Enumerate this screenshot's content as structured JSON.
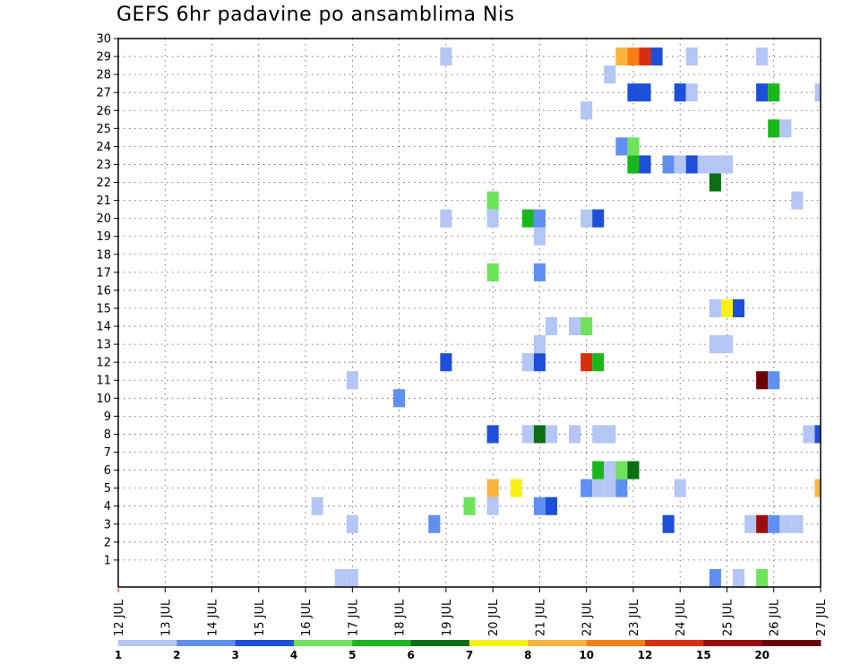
{
  "chart_data": {
    "type": "heatmap",
    "title": "GEFS 6hr padavine po ansamblima Nis",
    "xlabel": "",
    "ylabel": "",
    "x_unit": "6-hour step",
    "xlim": [
      0,
      60
    ],
    "ylim": [
      0,
      30
    ],
    "x_tick_labels": [
      "12 JUL",
      "13 JUL",
      "14 JUL",
      "15 JUL",
      "16 JUL",
      "17 JUL",
      "18 JUL",
      "19 JUL",
      "20 JUL",
      "21 JUL",
      "22 JUL",
      "23 JUL",
      "24 JUL",
      "25 JUL",
      "26 JUL",
      "27 JUL"
    ],
    "y_tick_labels": [
      "1",
      "2",
      "3",
      "4",
      "5",
      "6",
      "7",
      "8",
      "9",
      "10",
      "11",
      "12",
      "13",
      "14",
      "15",
      "16",
      "17",
      "18",
      "19",
      "20",
      "21",
      "22",
      "23",
      "24",
      "25",
      "26",
      "27",
      "28",
      "29",
      "30"
    ],
    "grid": true,
    "legend_labels": [
      "1",
      "2",
      "3",
      "4",
      "5",
      "6",
      "7",
      "8",
      "10",
      "12",
      "15",
      "20"
    ],
    "palette": [
      "#b3c6f4",
      "#5f8ff0",
      "#1e4fd8",
      "#6de25a",
      "#19b71b",
      "#0b6e13",
      "#f7f214",
      "#f9b43f",
      "#f77f15",
      "#d92f0e",
      "#9c0e0e",
      "#6b0000"
    ],
    "cells": [
      {
        "x": 19,
        "y": 0,
        "c": 0
      },
      {
        "x": 20,
        "y": 0,
        "c": 0
      },
      {
        "x": 51,
        "y": 0,
        "c": 1
      },
      {
        "x": 53,
        "y": 0,
        "c": 0
      },
      {
        "x": 55,
        "y": 0,
        "c": 3
      },
      {
        "x": 20,
        "y": 3,
        "c": 0
      },
      {
        "x": 27,
        "y": 3,
        "c": 1
      },
      {
        "x": 47,
        "y": 3,
        "c": 2
      },
      {
        "x": 54,
        "y": 3,
        "c": 0
      },
      {
        "x": 55,
        "y": 3,
        "c": 10
      },
      {
        "x": 56,
        "y": 3,
        "c": 1
      },
      {
        "x": 57,
        "y": 3,
        "c": 0
      },
      {
        "x": 58,
        "y": 3,
        "c": 0
      },
      {
        "x": 17,
        "y": 4,
        "c": 0
      },
      {
        "x": 30,
        "y": 4,
        "c": 3
      },
      {
        "x": 32,
        "y": 4,
        "c": 0
      },
      {
        "x": 36,
        "y": 4,
        "c": 1
      },
      {
        "x": 37,
        "y": 4,
        "c": 2
      },
      {
        "x": 32,
        "y": 5,
        "c": 7
      },
      {
        "x": 34,
        "y": 5,
        "c": 6
      },
      {
        "x": 40,
        "y": 5,
        "c": 1
      },
      {
        "x": 41,
        "y": 5,
        "c": 0
      },
      {
        "x": 42,
        "y": 5,
        "c": 0
      },
      {
        "x": 43,
        "y": 5,
        "c": 1
      },
      {
        "x": 48,
        "y": 5,
        "c": 0
      },
      {
        "x": 60,
        "y": 5,
        "c": 7
      },
      {
        "x": 41,
        "y": 6,
        "c": 4
      },
      {
        "x": 42,
        "y": 6,
        "c": 0
      },
      {
        "x": 43,
        "y": 6,
        "c": 3
      },
      {
        "x": 44,
        "y": 6,
        "c": 5
      },
      {
        "x": 32,
        "y": 8,
        "c": 2
      },
      {
        "x": 35,
        "y": 8,
        "c": 0
      },
      {
        "x": 36,
        "y": 8,
        "c": 5
      },
      {
        "x": 37,
        "y": 8,
        "c": 0
      },
      {
        "x": 39,
        "y": 8,
        "c": 0
      },
      {
        "x": 41,
        "y": 8,
        "c": 0
      },
      {
        "x": 42,
        "y": 8,
        "c": 0
      },
      {
        "x": 59,
        "y": 8,
        "c": 0
      },
      {
        "x": 60,
        "y": 8,
        "c": 2
      },
      {
        "x": 24,
        "y": 10,
        "c": 1
      },
      {
        "x": 20,
        "y": 11,
        "c": 0
      },
      {
        "x": 55,
        "y": 11,
        "c": 11
      },
      {
        "x": 56,
        "y": 11,
        "c": 1
      },
      {
        "x": 28,
        "y": 12,
        "c": 2
      },
      {
        "x": 35,
        "y": 12,
        "c": 0
      },
      {
        "x": 36,
        "y": 12,
        "c": 2
      },
      {
        "x": 40,
        "y": 12,
        "c": 9
      },
      {
        "x": 41,
        "y": 12,
        "c": 4
      },
      {
        "x": 36,
        "y": 13,
        "c": 0
      },
      {
        "x": 51,
        "y": 13,
        "c": 0
      },
      {
        "x": 52,
        "y": 13,
        "c": 0
      },
      {
        "x": 37,
        "y": 14,
        "c": 0
      },
      {
        "x": 39,
        "y": 14,
        "c": 0
      },
      {
        "x": 40,
        "y": 14,
        "c": 3
      },
      {
        "x": 51,
        "y": 15,
        "c": 0
      },
      {
        "x": 52,
        "y": 15,
        "c": 6
      },
      {
        "x": 53,
        "y": 15,
        "c": 2
      },
      {
        "x": 36,
        "y": 17,
        "c": 1
      },
      {
        "x": 32,
        "y": 17,
        "c": 3
      },
      {
        "x": 36,
        "y": 19,
        "c": 0
      },
      {
        "x": 28,
        "y": 20,
        "c": 0
      },
      {
        "x": 32,
        "y": 20,
        "c": 0
      },
      {
        "x": 35,
        "y": 20,
        "c": 4
      },
      {
        "x": 36,
        "y": 20,
        "c": 1
      },
      {
        "x": 40,
        "y": 20,
        "c": 0
      },
      {
        "x": 41,
        "y": 20,
        "c": 2
      },
      {
        "x": 32,
        "y": 21,
        "c": 3
      },
      {
        "x": 58,
        "y": 21,
        "c": 0
      },
      {
        "x": 51,
        "y": 22,
        "c": 5
      },
      {
        "x": 44,
        "y": 23,
        "c": 4
      },
      {
        "x": 45,
        "y": 23,
        "c": 2
      },
      {
        "x": 47,
        "y": 23,
        "c": 1
      },
      {
        "x": 48,
        "y": 23,
        "c": 0
      },
      {
        "x": 49,
        "y": 23,
        "c": 2
      },
      {
        "x": 50,
        "y": 23,
        "c": 0
      },
      {
        "x": 51,
        "y": 23,
        "c": 0
      },
      {
        "x": 52,
        "y": 23,
        "c": 0
      },
      {
        "x": 43,
        "y": 24,
        "c": 1
      },
      {
        "x": 44,
        "y": 24,
        "c": 3
      },
      {
        "x": 56,
        "y": 25,
        "c": 4
      },
      {
        "x": 57,
        "y": 25,
        "c": 0
      },
      {
        "x": 40,
        "y": 26,
        "c": 0
      },
      {
        "x": 44,
        "y": 27,
        "c": 2
      },
      {
        "x": 45,
        "y": 27,
        "c": 2
      },
      {
        "x": 48,
        "y": 27,
        "c": 2
      },
      {
        "x": 49,
        "y": 27,
        "c": 0
      },
      {
        "x": 55,
        "y": 27,
        "c": 2
      },
      {
        "x": 56,
        "y": 27,
        "c": 4
      },
      {
        "x": 60,
        "y": 27,
        "c": 0
      },
      {
        "x": 42,
        "y": 28,
        "c": 0
      },
      {
        "x": 28,
        "y": 29,
        "c": 0
      },
      {
        "x": 43,
        "y": 29,
        "c": 7
      },
      {
        "x": 44,
        "y": 29,
        "c": 8
      },
      {
        "x": 45,
        "y": 29,
        "c": 9
      },
      {
        "x": 46,
        "y": 29,
        "c": 2
      },
      {
        "x": 49,
        "y": 29,
        "c": 0
      },
      {
        "x": 55,
        "y": 29,
        "c": 0
      }
    ]
  }
}
